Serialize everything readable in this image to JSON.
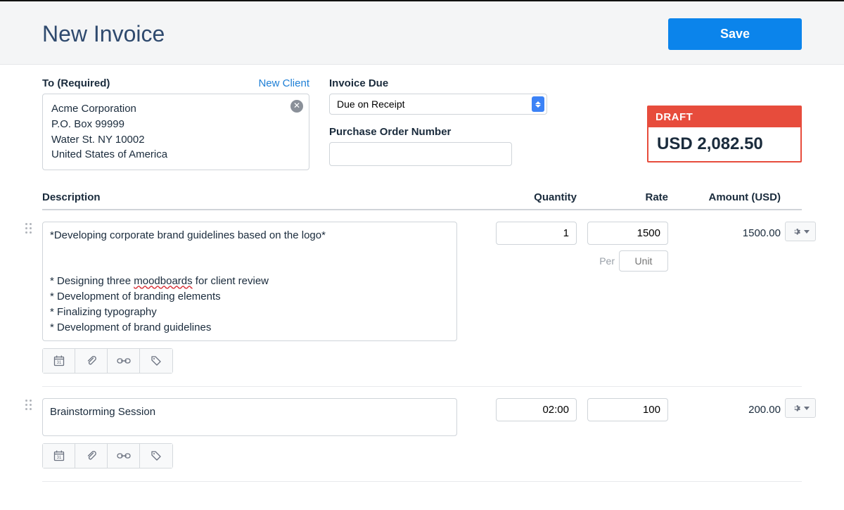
{
  "page": {
    "title": "New Invoice",
    "save_label": "Save"
  },
  "client": {
    "section_label": "To (Required)",
    "new_client_label": "New Client",
    "name": "Acme Corporation",
    "line2": "P.O. Box 99999",
    "line3": "Water St. NY 10002",
    "line4": "United States of America"
  },
  "meta": {
    "due_label": "Invoice Due",
    "due_value": "Due on Receipt",
    "po_label": "Purchase Order Number",
    "po_value": ""
  },
  "total": {
    "badge": "DRAFT",
    "currency": "USD",
    "amount": "2,082.50",
    "badge_bg": "#e74c3c",
    "badge_text_color": "#ffffff"
  },
  "columns": {
    "description": "Description",
    "quantity": "Quantity",
    "rate": "Rate",
    "amount": "Amount (USD)"
  },
  "per_label": "Per",
  "unit_placeholder": "Unit",
  "items": [
    {
      "description_line1": "*Developing corporate brand guidelines based on the logo*",
      "description_bullets": [
        "* Designing three moodboards for client review",
        "* Development of branding elements",
        "* Finalizing typography",
        "* Development of brand guidelines"
      ],
      "misspelled_word": "moodboards",
      "quantity": "1",
      "rate": "1500",
      "amount": "1500.00",
      "show_per_unit": true
    },
    {
      "description": "Brainstorming Session",
      "quantity": "02:00",
      "rate": "100",
      "amount": "200.00",
      "show_per_unit": false
    }
  ],
  "colors": {
    "primary": "#0b84eb",
    "link": "#1e7fd6",
    "text": "#1a2b3c",
    "border": "#cfd4d9",
    "header_bg": "#f4f5f6",
    "draft_red": "#e74c3c"
  }
}
